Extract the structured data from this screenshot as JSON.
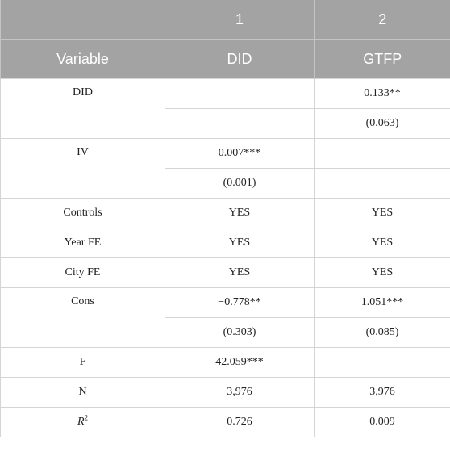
{
  "header": {
    "row1": [
      "",
      "1",
      "2"
    ],
    "row2": [
      "Variable",
      "DID",
      "GTFP"
    ]
  },
  "rows": [
    {
      "variable": "DID",
      "col1": [
        "",
        ""
      ],
      "col2": [
        "0.133**",
        "(0.063)"
      ]
    },
    {
      "variable": "IV",
      "col1": [
        "0.007***",
        "(0.001)"
      ],
      "col2": [
        "",
        ""
      ]
    },
    {
      "variable": "Controls",
      "col1": [
        "YES"
      ],
      "col2": [
        "YES"
      ]
    },
    {
      "variable": "Year FE",
      "col1": [
        "YES"
      ],
      "col2": [
        "YES"
      ]
    },
    {
      "variable": "City FE",
      "col1": [
        "YES"
      ],
      "col2": [
        "YES"
      ]
    },
    {
      "variable": "Cons",
      "col1": [
        "−0.778**",
        "(0.303)"
      ],
      "col2": [
        "1.051***",
        "(0.085)"
      ]
    },
    {
      "variable": "F",
      "col1": [
        "42.059***"
      ],
      "col2": [
        ""
      ]
    },
    {
      "variable": "N",
      "col1": [
        "3,976"
      ],
      "col2": [
        "3,976"
      ]
    },
    {
      "variable_base": "R",
      "variable_sup": "2",
      "col1": [
        "0.726"
      ],
      "col2": [
        "0.009"
      ]
    }
  ]
}
